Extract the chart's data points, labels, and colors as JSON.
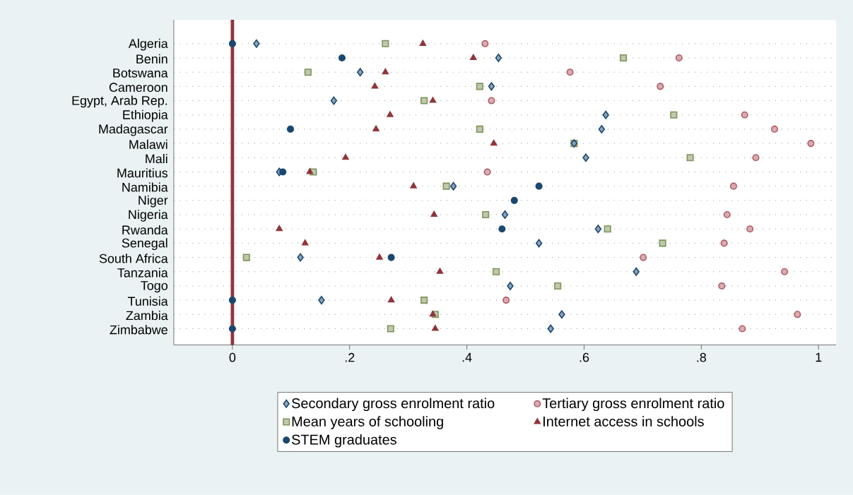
{
  "chart_data": {
    "type": "scatter",
    "orientation": "horizontal",
    "categories": [
      "Algeria",
      "Benin",
      "Botswana",
      "Cameroon",
      "Egypt, Arab Rep.",
      "Ethiopia",
      "Madagascar",
      "Malawi",
      "Mali",
      "Mauritius",
      "Namibia",
      "Niger",
      "Nigeria",
      "Rwanda",
      "Senegal",
      "South Africa",
      "Tanzania",
      "Togo",
      "Tunisia",
      "Zambia",
      "Zimbabwe"
    ],
    "series": [
      {
        "name": "Secondary gross enrolment ratio",
        "color": "#1a476f",
        "marker": "diamond",
        "values": [
          0.041,
          0.454,
          0.218,
          0.442,
          0.173,
          0.637,
          0.63,
          0.583,
          0.603,
          0.08,
          0.377,
          null,
          0.465,
          0.624,
          0.523,
          0.116,
          0.689,
          0.474,
          0.152,
          0.562,
          0.543
        ]
      },
      {
        "name": "Tertiary gross enrolment ratio",
        "color": "#b05a63",
        "marker": "circle",
        "values": [
          0.431,
          0.762,
          0.576,
          0.73,
          0.442,
          0.874,
          0.925,
          0.987,
          0.893,
          0.435,
          0.855,
          null,
          0.844,
          0.883,
          0.839,
          0.701,
          0.942,
          0.835,
          0.467,
          0.964,
          0.87
        ]
      },
      {
        "name": "Mean years of schooling",
        "color": "#7d945a",
        "marker": "square",
        "values": [
          0.261,
          0.667,
          0.129,
          0.422,
          0.327,
          0.753,
          0.422,
          0.583,
          0.781,
          0.138,
          0.365,
          null,
          0.432,
          0.64,
          0.734,
          0.024,
          0.45,
          0.555,
          0.327,
          0.346,
          0.27
        ]
      },
      {
        "name": "Internet access in schools",
        "color": "#90353b",
        "marker": "triangle",
        "values": [
          0.325,
          0.411,
          0.261,
          0.243,
          0.342,
          0.269,
          0.245,
          0.446,
          0.193,
          0.132,
          0.309,
          null,
          0.344,
          0.08,
          0.124,
          0.251,
          0.354,
          null,
          0.271,
          0.342,
          0.346
        ]
      },
      {
        "name": "STEM graduates",
        "color": "#1a476f",
        "marker": "circle",
        "values": [
          0,
          0.187,
          null,
          null,
          null,
          null,
          0.099,
          null,
          null,
          0.086,
          0.523,
          0.481,
          null,
          0.46,
          null,
          0.271,
          null,
          null,
          0,
          null,
          0
        ]
      }
    ],
    "xlim": [
      -0.1,
      1.03
    ],
    "xticks": [
      0,
      {
        "value": 0.2,
        "label": ".2"
      },
      {
        "value": 0.4,
        "label": ".4"
      },
      {
        "value": 0.6,
        "label": ".6"
      },
      {
        "value": 0.8,
        "label": ".8"
      },
      1
    ],
    "ref_lines": [
      {
        "axis": "x",
        "value": 0,
        "color": "#90353b"
      }
    ],
    "grid": "y",
    "legend": "bottom"
  }
}
